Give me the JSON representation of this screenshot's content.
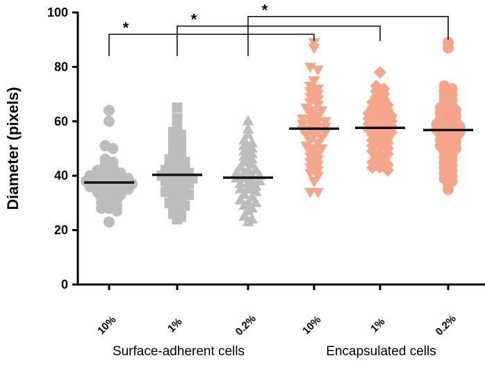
{
  "chart_data": {
    "type": "scatter",
    "subtype": "dot-plot-with-median",
    "title": "",
    "xlabel": "",
    "ylabel": "Diameter (pixels)",
    "ylim": [
      0,
      100
    ],
    "yticks": [
      "0",
      "20",
      "40",
      "60",
      "80",
      "100"
    ],
    "categories": [
      "10%",
      "1%",
      "0.2%",
      "10%",
      "1%",
      "0.2%"
    ],
    "group_labels": [
      {
        "label": "Surface-adherent cells",
        "categories": [
          0,
          1,
          2
        ]
      },
      {
        "label": "Encapsulated cells",
        "categories": [
          3,
          4,
          5
        ]
      }
    ],
    "series": [
      {
        "name": "Surface-adherent 10%",
        "group": "Surface-adherent cells",
        "marker": "circle",
        "color": "#bdbdbd",
        "median": 37.5,
        "values": [
          64,
          60,
          51,
          50,
          46,
          45,
          44,
          43,
          42,
          42,
          41,
          41,
          40,
          40,
          40,
          39,
          39,
          39,
          38,
          38,
          38,
          38,
          37,
          37,
          37,
          36,
          36,
          36,
          35,
          35,
          35,
          34,
          34,
          33,
          33,
          32,
          32,
          31,
          30,
          30,
          29,
          28,
          28,
          27,
          23
        ]
      },
      {
        "name": "Surface-adherent 1%",
        "group": "Surface-adherent cells",
        "marker": "square",
        "color": "#bdbdbd",
        "median": 40.3,
        "values": [
          65,
          61,
          58,
          56,
          55,
          54,
          53,
          52,
          51,
          50,
          49,
          48,
          47,
          46,
          45,
          45,
          44,
          43,
          43,
          42,
          42,
          41,
          41,
          40,
          40,
          40,
          39,
          39,
          38,
          38,
          37,
          37,
          36,
          35,
          35,
          34,
          34,
          33,
          33,
          32,
          31,
          30,
          30,
          29,
          28,
          27,
          26,
          25,
          24
        ]
      },
      {
        "name": "Surface-adherent 0.2%",
        "group": "Surface-adherent cells",
        "marker": "triangle",
        "color": "#bdbdbd",
        "median": 39.3,
        "values": [
          60,
          57,
          55,
          53,
          52,
          51,
          50,
          49,
          48,
          47,
          46,
          45,
          44,
          43,
          42,
          42,
          41,
          41,
          40,
          40,
          39,
          39,
          38,
          38,
          37,
          37,
          36,
          35,
          35,
          34,
          33,
          32,
          31,
          30,
          30,
          29,
          28,
          27,
          25,
          24,
          23
        ]
      },
      {
        "name": "Encapsulated 10%",
        "group": "Encapsulated cells",
        "marker": "triangle-down",
        "color": "#f4a58a",
        "median": 57.3,
        "values": [
          89,
          87,
          80,
          79,
          75,
          73,
          72,
          71,
          70,
          69,
          68,
          67,
          66,
          65,
          64,
          64,
          63,
          62,
          61,
          61,
          60,
          60,
          59,
          59,
          58,
          58,
          57,
          57,
          56,
          56,
          55,
          55,
          54,
          53,
          52,
          51,
          50,
          50,
          49,
          48,
          47,
          46,
          45,
          44,
          43,
          42,
          41,
          40,
          38,
          34,
          34
        ]
      },
      {
        "name": "Encapsulated 1%",
        "group": "Encapsulated cells",
        "marker": "diamond",
        "color": "#f4a58a",
        "median": 57.6,
        "values": [
          78,
          73,
          72,
          71,
          70,
          69,
          68,
          67,
          67,
          66,
          65,
          65,
          64,
          63,
          63,
          62,
          62,
          61,
          61,
          60,
          60,
          59,
          59,
          58,
          58,
          57,
          57,
          56,
          56,
          55,
          55,
          54,
          53,
          53,
          52,
          51,
          51,
          50,
          49,
          48,
          48,
          47,
          46,
          45,
          45,
          44,
          43,
          43,
          42
        ]
      },
      {
        "name": "Encapsulated 0.2%",
        "group": "Encapsulated cells",
        "marker": "circle",
        "color": "#f4a58a",
        "median": 56.8,
        "values": [
          89,
          87,
          73,
          72,
          71,
          70,
          69,
          68,
          67,
          66,
          65,
          64,
          64,
          63,
          62,
          62,
          61,
          60,
          60,
          59,
          59,
          58,
          58,
          57,
          57,
          56,
          56,
          55,
          55,
          54,
          53,
          53,
          52,
          51,
          50,
          50,
          49,
          48,
          47,
          46,
          45,
          44,
          43,
          42,
          41,
          40,
          39,
          38,
          37,
          35
        ]
      }
    ],
    "significance": [
      {
        "from": 0,
        "to": 3,
        "label": "*",
        "level": 92
      },
      {
        "from": 1,
        "to": 4,
        "label": "*",
        "level": 95
      },
      {
        "from": 2,
        "to": 5,
        "label": "*",
        "level": 98.5
      }
    ],
    "grid": false,
    "legend": "none"
  }
}
